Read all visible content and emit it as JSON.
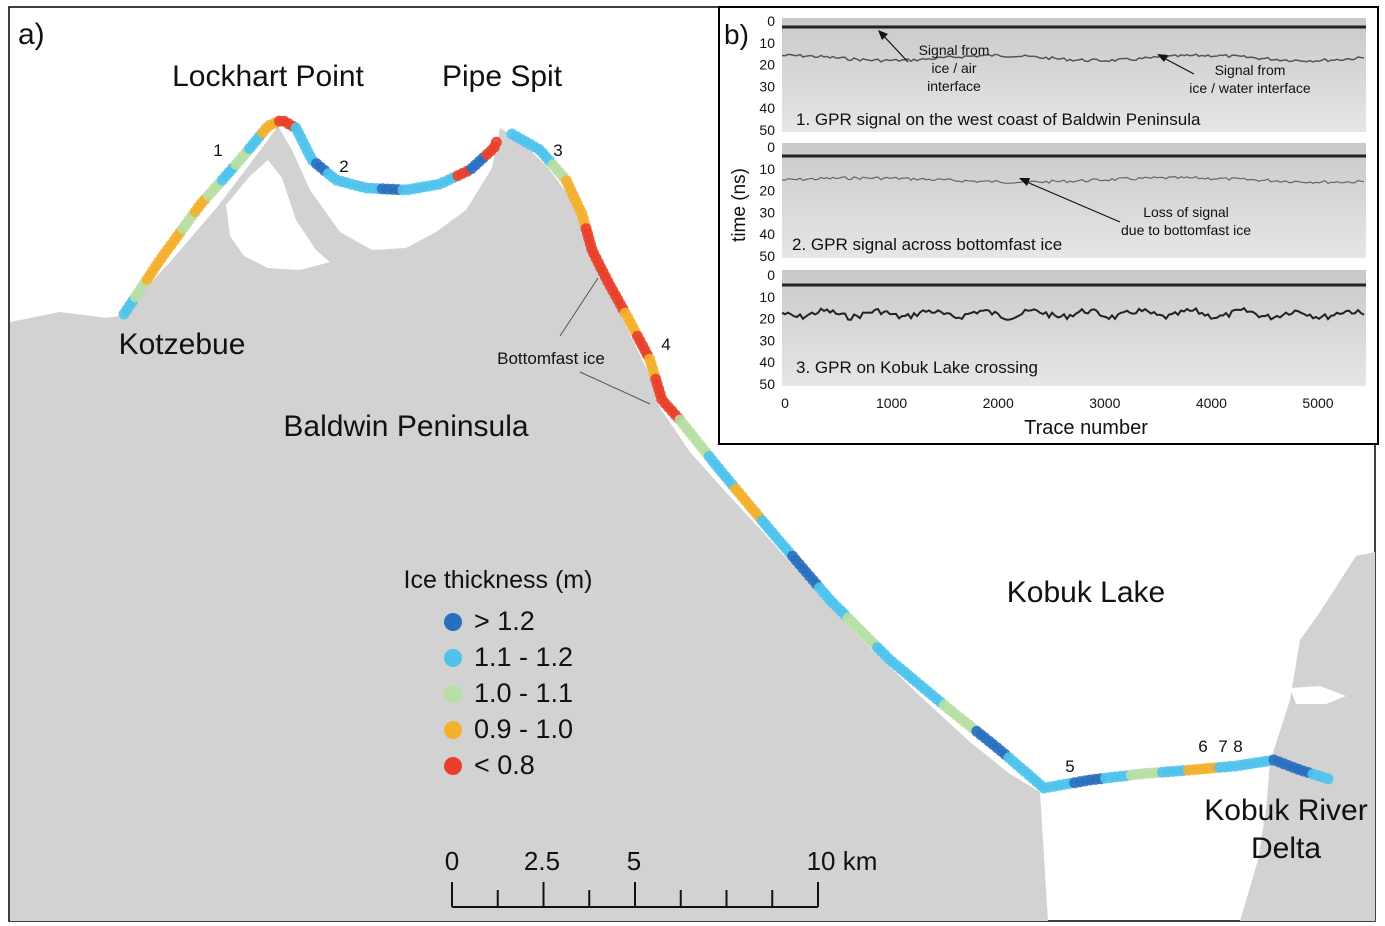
{
  "panel_a": {
    "label": "a)",
    "places": {
      "lockhart": "Lockhart Point",
      "pipe": "Pipe Spit",
      "kotzebue": "Kotzebue",
      "baldwin": "Baldwin Peninsula",
      "kobuk_lake": "Kobuk Lake",
      "delta_1": "Kobuk River",
      "delta_2": "Delta"
    },
    "annotation": "Bottomfast ice",
    "markers": [
      "1",
      "2",
      "3",
      "4",
      "5",
      "6",
      "7",
      "8"
    ],
    "legend": {
      "title": "Ice thickness (m)",
      "items": [
        {
          "label": "> 1.2",
          "color": "#2a6fbf"
        },
        {
          "label": "1.1 - 1.2",
          "color": "#4fc3ec"
        },
        {
          "label": "1.0 - 1.1",
          "color": "#b7dfa4"
        },
        {
          "label": "0.9 - 1.0",
          "color": "#f4b02f"
        },
        {
          "label": "< 0.8",
          "color": "#e8402a"
        }
      ]
    },
    "scalebar": {
      "ticks": [
        "0",
        "2.5",
        "5",
        "10 km"
      ]
    }
  },
  "panel_b": {
    "label": "b)",
    "ylabel": "time (ns)",
    "xlabel": "Trace number",
    "xticks": [
      "0",
      "1000",
      "2000",
      "3000",
      "4000",
      "5000"
    ],
    "yticks": [
      "0",
      "10",
      "20",
      "30",
      "40",
      "50"
    ],
    "panels": [
      {
        "caption": "1. GPR signal on the west coast of Baldwin Peninsula"
      },
      {
        "caption": "2. GPR signal across bottomfast ice"
      },
      {
        "caption": "3. GPR on Kobuk Lake crossing"
      }
    ],
    "notes": {
      "air_1": "Signal from",
      "air_2": "ice / air",
      "air_3": "interface",
      "water_1": "Signal from",
      "water_2": "ice / water interface",
      "loss_1": "Loss of signal",
      "loss_2": "due to bottomfast ice"
    }
  }
}
